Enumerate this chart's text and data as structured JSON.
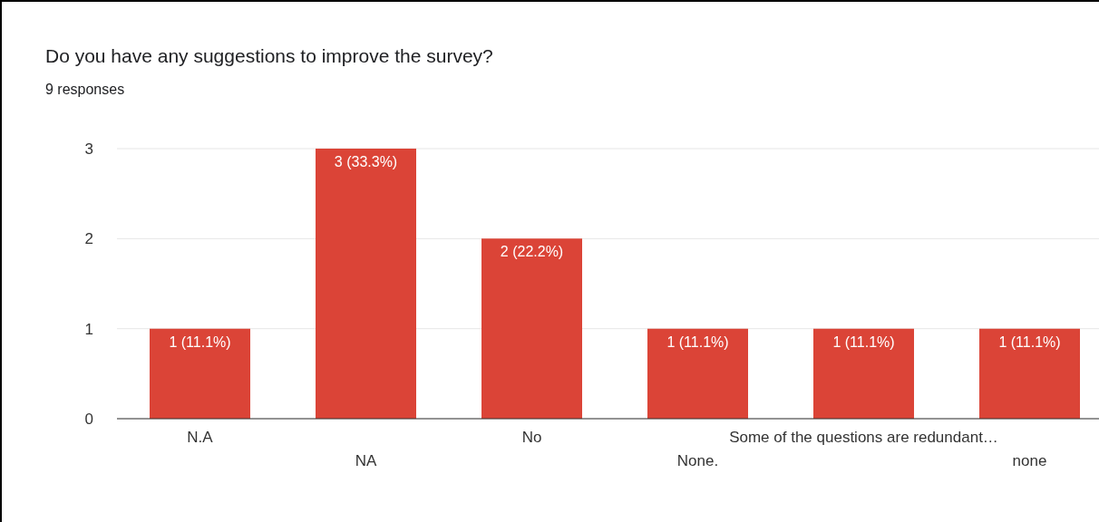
{
  "chart_data": {
    "type": "bar",
    "title": "Do you have any suggestions to improve the survey?",
    "subtitle": "9 responses",
    "categories": [
      "N.A",
      "NA",
      "No",
      "None.",
      "Some of the questions are redundant…",
      "none"
    ],
    "values": [
      1,
      3,
      2,
      1,
      1,
      1
    ],
    "color": "#db4437",
    "value_labels": [
      "1 (11.1%)",
      "3 (33.3%)",
      "2 (22.2%)",
      "1 (11.1%)",
      "1 (11.1%)",
      "1 (11.1%)"
    ],
    "ylim": [
      0,
      3
    ],
    "yticks": [
      0,
      1,
      2,
      3
    ],
    "grid": "y"
  }
}
